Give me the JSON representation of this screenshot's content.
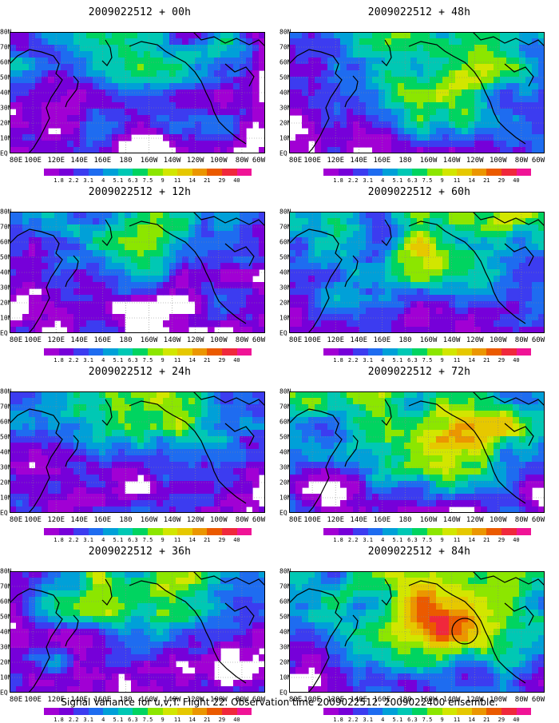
{
  "figure": {
    "caption": "Signal Variance for u,v,T. Flight 22. Observation time 2009022512. 2009022400 ensemble."
  },
  "chart_data": {
    "type": "heatmap",
    "x_ticks": [
      "80E",
      "100E",
      "120E",
      "140E",
      "160E",
      "180",
      "160W",
      "140W",
      "120W",
      "100W",
      "80W",
      "60W"
    ],
    "y_ticks": [
      "80N",
      "70N",
      "60N",
      "50N",
      "40N",
      "30N",
      "20N",
      "10N",
      "EQ"
    ],
    "colorbar": {
      "levels": [
        "1.8",
        "2.2",
        "3.1",
        "4",
        "5.1",
        "6.3",
        "7.5",
        "9",
        "11",
        "14",
        "21",
        "29",
        "40"
      ],
      "colors": [
        "#a100d4",
        "#7600d9",
        "#3c3cf0",
        "#1e6cf0",
        "#00a0d8",
        "#00c8b4",
        "#00d460",
        "#8ce600",
        "#d2e600",
        "#e6c800",
        "#eb9600",
        "#eb5a00",
        "#f0283c",
        "#f01496"
      ]
    },
    "panels": [
      {
        "title": "2009022512 + 00h",
        "intensity": 0.35,
        "pos": "left",
        "circle": false
      },
      {
        "title": "2009022512 + 12h",
        "intensity": 0.45,
        "pos": "left",
        "circle": false
      },
      {
        "title": "2009022512 + 24h",
        "intensity": 0.52,
        "pos": "left",
        "circle": false
      },
      {
        "title": "2009022512 + 36h",
        "intensity": 0.6,
        "pos": "left",
        "circle": false
      },
      {
        "title": "2009022512 + 48h",
        "intensity": 0.65,
        "pos": "right",
        "circle": false
      },
      {
        "title": "2009022512 + 60h",
        "intensity": 0.75,
        "pos": "right",
        "circle": false
      },
      {
        "title": "2009022512 + 72h",
        "intensity": 0.85,
        "pos": "right",
        "circle": false
      },
      {
        "title": "2009022512 + 84h",
        "intensity": 0.95,
        "pos": "right",
        "circle": true
      }
    ]
  }
}
